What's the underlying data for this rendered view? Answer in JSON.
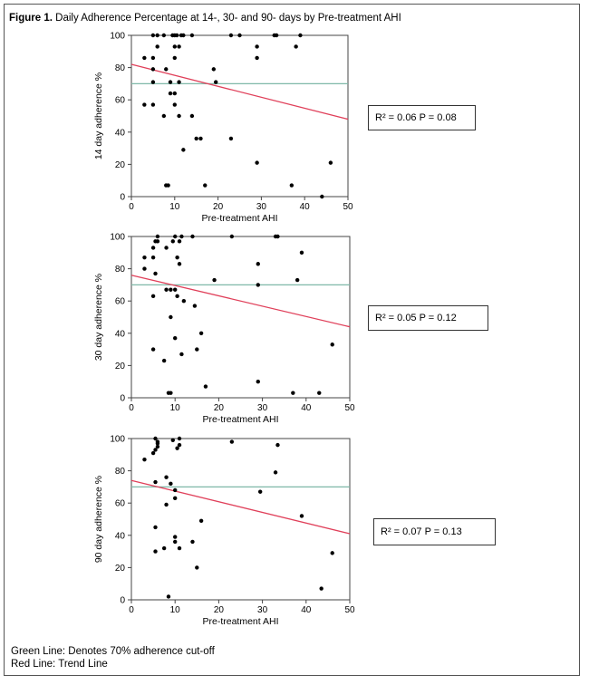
{
  "figure": {
    "label": "Figure 1.",
    "title": "Daily Adherence Percentage at 14-, 30- and 90- days by Pre-treatment AHI"
  },
  "legend": {
    "green": "Green Line: Denotes 70% adherence cut-off",
    "red": "Red Line: Trend Line"
  },
  "colors": {
    "cutoff": "#7fb8a8",
    "trend": "#e0405a",
    "points": "#000000"
  },
  "chart_data": [
    {
      "type": "scatter",
      "xlabel": "Pre-treatment AHI",
      "ylabel": "14 day adherence %",
      "xlim": [
        0,
        50
      ],
      "ylim": [
        0,
        100
      ],
      "xticks": [
        0,
        10,
        20,
        30,
        40,
        50
      ],
      "yticks": [
        0,
        20,
        40,
        60,
        80,
        100
      ],
      "cutoff": 70,
      "trend": {
        "x": [
          0,
          50
        ],
        "y": [
          82,
          48
        ]
      },
      "stats": "R² = 0.06 P = 0.08",
      "points": [
        [
          3,
          57
        ],
        [
          3,
          86
        ],
        [
          5,
          100
        ],
        [
          5,
          86
        ],
        [
          5,
          79
        ],
        [
          5,
          71
        ],
        [
          5,
          57
        ],
        [
          6,
          93
        ],
        [
          6,
          100
        ],
        [
          7.5,
          50
        ],
        [
          7.5,
          100
        ],
        [
          8,
          79
        ],
        [
          8,
          7
        ],
        [
          8.5,
          7
        ],
        [
          9,
          64
        ],
        [
          9,
          71
        ],
        [
          9.5,
          100
        ],
        [
          10,
          100
        ],
        [
          10,
          93
        ],
        [
          10,
          86
        ],
        [
          10,
          64
        ],
        [
          10,
          57
        ],
        [
          10.5,
          100
        ],
        [
          11,
          71
        ],
        [
          11,
          50
        ],
        [
          11,
          93
        ],
        [
          11.5,
          100
        ],
        [
          12,
          29
        ],
        [
          12,
          100
        ],
        [
          14,
          100
        ],
        [
          14,
          50
        ],
        [
          15,
          36
        ],
        [
          16,
          36
        ],
        [
          17,
          7
        ],
        [
          19,
          79
        ],
        [
          19.5,
          71
        ],
        [
          23,
          100
        ],
        [
          23,
          36
        ],
        [
          25,
          100
        ],
        [
          29,
          93
        ],
        [
          29,
          86
        ],
        [
          29,
          21
        ],
        [
          33,
          100
        ],
        [
          33.5,
          100
        ],
        [
          37,
          7
        ],
        [
          38,
          93
        ],
        [
          39,
          100
        ],
        [
          44,
          0
        ],
        [
          46,
          21
        ]
      ]
    },
    {
      "type": "scatter",
      "xlabel": "Pre-treatment AHI",
      "ylabel": "30 day adherence %",
      "xlim": [
        0,
        50
      ],
      "ylim": [
        0,
        100
      ],
      "xticks": [
        0,
        10,
        20,
        30,
        40,
        50
      ],
      "yticks": [
        0,
        20,
        40,
        60,
        80,
        100
      ],
      "cutoff": 70,
      "trend": {
        "x": [
          0,
          50
        ],
        "y": [
          76,
          44
        ]
      },
      "stats": "R² = 0.05 P = 0.12",
      "points": [
        [
          3,
          87
        ],
        [
          3,
          80
        ],
        [
          5,
          93
        ],
        [
          5,
          87
        ],
        [
          5,
          63
        ],
        [
          5,
          30
        ],
        [
          5.5,
          97
        ],
        [
          5.5,
          77
        ],
        [
          6,
          100
        ],
        [
          6,
          97
        ],
        [
          7.5,
          23
        ],
        [
          8,
          93
        ],
        [
          8,
          67
        ],
        [
          8.5,
          3
        ],
        [
          9,
          3
        ],
        [
          9,
          67
        ],
        [
          9,
          50
        ],
        [
          9.5,
          97
        ],
        [
          10,
          100
        ],
        [
          10,
          67
        ],
        [
          10,
          37
        ],
        [
          10.5,
          87
        ],
        [
          10.5,
          63
        ],
        [
          11,
          83
        ],
        [
          11,
          97
        ],
        [
          11.5,
          27
        ],
        [
          11.5,
          100
        ],
        [
          12,
          60
        ],
        [
          14,
          100
        ],
        [
          14.5,
          57
        ],
        [
          15,
          30
        ],
        [
          16,
          40
        ],
        [
          17,
          7
        ],
        [
          19,
          73
        ],
        [
          23,
          100
        ],
        [
          29,
          83
        ],
        [
          29,
          70
        ],
        [
          29,
          10
        ],
        [
          33,
          100
        ],
        [
          33.5,
          100
        ],
        [
          37,
          3
        ],
        [
          38,
          73
        ],
        [
          39,
          90
        ],
        [
          43,
          3
        ],
        [
          46,
          33
        ]
      ]
    },
    {
      "type": "scatter",
      "xlabel": "Pre-treatment AHI",
      "ylabel": "90 day adherence %",
      "xlim": [
        0,
        50
      ],
      "ylim": [
        0,
        100
      ],
      "xticks": [
        0,
        10,
        20,
        30,
        40,
        50
      ],
      "yticks": [
        0,
        20,
        40,
        60,
        80,
        100
      ],
      "cutoff": 70,
      "trend": {
        "x": [
          0,
          50
        ],
        "y": [
          74,
          41
        ]
      },
      "stats": "R² = 0.07 P = 0.13",
      "points": [
        [
          3,
          87
        ],
        [
          5,
          91
        ],
        [
          5.5,
          93
        ],
        [
          5.5,
          100
        ],
        [
          5.5,
          45
        ],
        [
          5.5,
          30
        ],
        [
          5.5,
          73
        ],
        [
          6,
          97
        ],
        [
          6,
          95
        ],
        [
          6,
          98
        ],
        [
          7.5,
          32
        ],
        [
          8,
          76
        ],
        [
          8,
          59
        ],
        [
          8.5,
          2
        ],
        [
          9,
          72
        ],
        [
          9.5,
          99
        ],
        [
          10,
          68
        ],
        [
          10,
          63
        ],
        [
          10,
          39
        ],
        [
          10,
          36
        ],
        [
          10.5,
          94
        ],
        [
          11,
          96
        ],
        [
          11,
          100
        ],
        [
          11,
          32
        ],
        [
          14,
          36
        ],
        [
          15,
          20
        ],
        [
          16,
          49
        ],
        [
          23,
          98
        ],
        [
          29.5,
          67
        ],
        [
          33,
          79
        ],
        [
          33.5,
          96
        ],
        [
          39,
          52
        ],
        [
          43.5,
          7
        ],
        [
          46,
          29
        ]
      ]
    }
  ]
}
